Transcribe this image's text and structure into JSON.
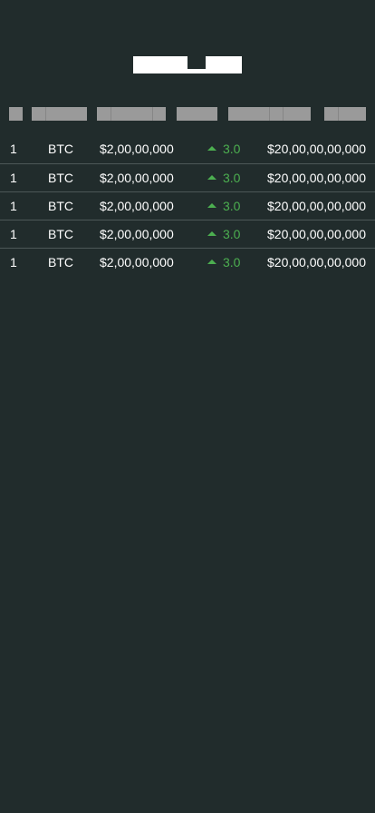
{
  "colors": {
    "background": "#212c2c",
    "positive": "#4caf50",
    "text": "#ffffff",
    "placeholder": "#9a9a9a"
  },
  "table": {
    "rows": [
      {
        "rank": "1",
        "symbol": "BTC",
        "price": "$2,00,00,000",
        "change": "3.0",
        "market_cap": "$20,00,00,00,000"
      },
      {
        "rank": "1",
        "symbol": "BTC",
        "price": "$2,00,00,000",
        "change": "3.0",
        "market_cap": "$20,00,00,00,000"
      },
      {
        "rank": "1",
        "symbol": "BTC",
        "price": "$2,00,00,000",
        "change": "3.0",
        "market_cap": "$20,00,00,00,000"
      },
      {
        "rank": "1",
        "symbol": "BTC",
        "price": "$2,00,00,000",
        "change": "3.0",
        "market_cap": "$20,00,00,00,000"
      },
      {
        "rank": "1",
        "symbol": "BTC",
        "price": "$2,00,00,000",
        "change": "3.0",
        "market_cap": "$20,00,00,00,000"
      }
    ]
  }
}
